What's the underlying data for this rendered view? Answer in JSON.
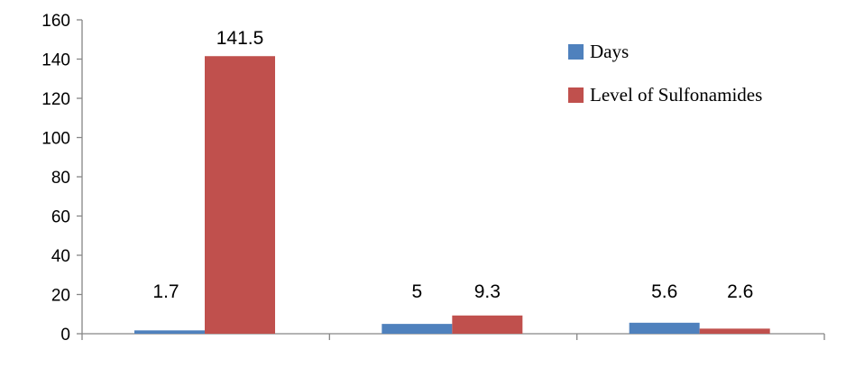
{
  "chart_data": {
    "type": "bar",
    "title": "",
    "xlabel": "",
    "ylabel": "",
    "categories": [
      "",
      "",
      ""
    ],
    "series": [
      {
        "name": "Days",
        "color": "#4F81BD",
        "values": [
          1.7,
          5,
          5.6
        ],
        "labels": [
          "1.7",
          "5",
          "5.6"
        ]
      },
      {
        "name": "Level of Sulfonamides",
        "color": "#C0504D",
        "values": [
          141.5,
          9.3,
          2.6
        ],
        "labels": [
          "141.5",
          "9.3",
          "2.6"
        ]
      }
    ],
    "ylim": [
      0,
      160
    ],
    "yticks": [
      0,
      20,
      40,
      60,
      80,
      100,
      120,
      140,
      160
    ],
    "grid": false,
    "legend": "top-right"
  }
}
